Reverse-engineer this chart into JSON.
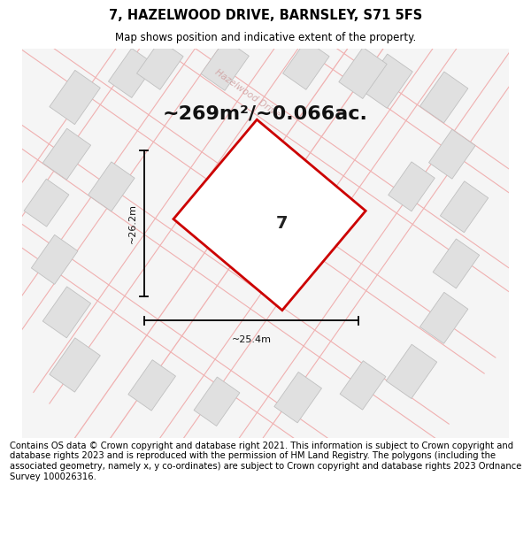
{
  "title": "7, HAZELWOOD DRIVE, BARNSLEY, S71 5FS",
  "subtitle": "Map shows position and indicative extent of the property.",
  "area_text": "~269m²/~0.066ac.",
  "dim_width": "~25.4m",
  "dim_height": "~26.2m",
  "property_label": "7",
  "footer": "Contains OS data © Crown copyright and database right 2021. This information is subject to Crown copyright and database rights 2023 and is reproduced with the permission of HM Land Registry. The polygons (including the associated geometry, namely x, y co-ordinates) are subject to Crown copyright and database rights 2023 Ordnance Survey 100026316.",
  "bg_color": "#ffffff",
  "map_bg": "#f5f5f5",
  "plot_outline_color": "#cc0000",
  "road_color": "#f0b0b0",
  "building_color": "#e0e0e0",
  "building_outline": "#c0c0c0",
  "street_name_color": "#d0a0a0",
  "title_fontsize": 10.5,
  "subtitle_fontsize": 8.5,
  "area_fontsize": 16,
  "label_fontsize": 14,
  "dim_fontsize": 8,
  "footer_fontsize": 7.2
}
